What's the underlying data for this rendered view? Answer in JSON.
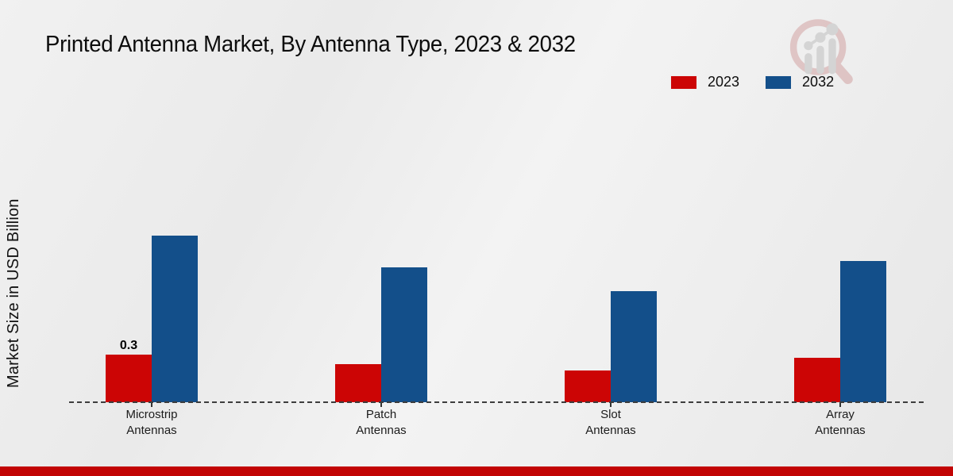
{
  "page": {
    "title": "Printed Antenna Market, By Antenna Type, 2023 & 2032",
    "ylabel": "Market Size in USD Billion"
  },
  "legend": {
    "items": [
      {
        "label": "2023",
        "color": "#cc0505"
      },
      {
        "label": "2032",
        "color": "#134f8a"
      }
    ]
  },
  "chart_data": {
    "type": "bar",
    "title": "Printed Antenna Market, By Antenna Type, 2023 & 2032",
    "xlabel": "",
    "ylabel": "Market Size in USD Billion",
    "unit": "USD Billion",
    "categories": [
      "Microstrip\nAntennas",
      "Patch\nAntennas",
      "Slot\nAntennas",
      "Array\nAntennas"
    ],
    "series": [
      {
        "name": "2023",
        "color": "#cc0505",
        "values": [
          0.3,
          0.24,
          0.2,
          0.28
        ],
        "value_labels": [
          "0.3",
          "",
          "",
          ""
        ]
      },
      {
        "name": "2032",
        "color": "#134f8a",
        "values": [
          1.05,
          0.85,
          0.7,
          0.89
        ],
        "value_labels": [
          "",
          "",
          "",
          ""
        ]
      }
    ],
    "ylim": [
      0,
      1.25
    ],
    "grid": false,
    "y_ticks_shown": false,
    "legend_position": "top-right",
    "baseline_style": "dashed"
  },
  "branding": {
    "logo_icon": "magnifier-growth-chart-watermark-icon",
    "footer_bar_color": "#c20404"
  }
}
